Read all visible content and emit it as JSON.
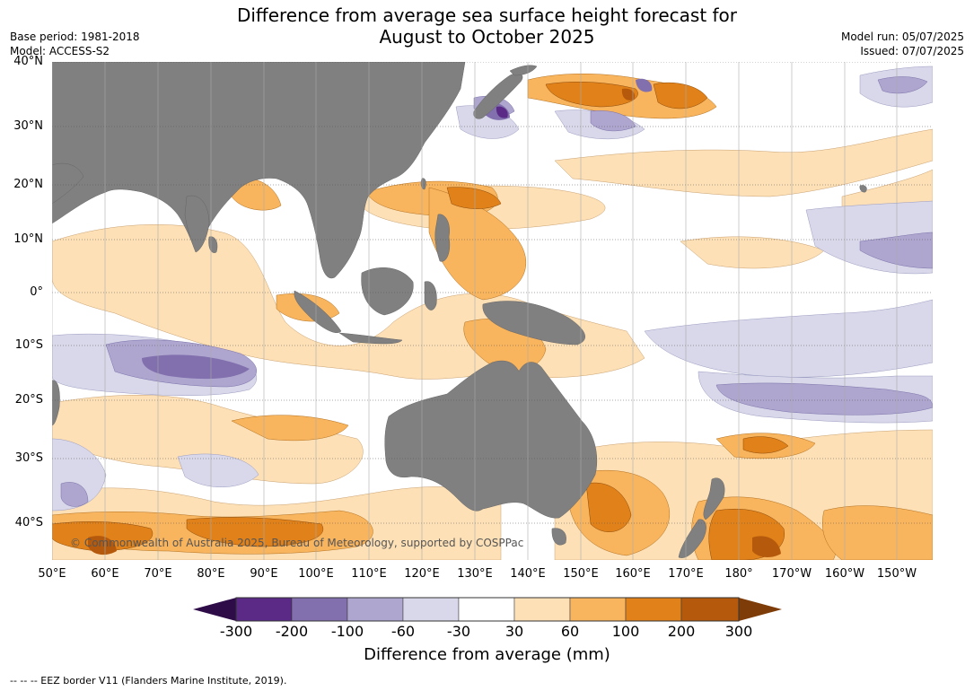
{
  "title_line1": "Difference from average sea surface height forecast for",
  "title_line2": "August to October 2025",
  "meta_left": [
    "Base period: 1981-2018",
    "Model: ACCESS-S2"
  ],
  "meta_right": [
    "Model run: 05/07/2025",
    "Issued: 07/07/2025"
  ],
  "lat_labels": [
    "40°N",
    "30°N",
    "20°N",
    "10°N",
    "0°",
    "10°S",
    "20°S",
    "30°S",
    "40°S"
  ],
  "lon_labels": [
    "50°E",
    "60°E",
    "70°E",
    "80°E",
    "90°E",
    "100°E",
    "110°E",
    "120°E",
    "130°E",
    "140°E",
    "150°E",
    "160°E",
    "170°E",
    "180°",
    "170°W",
    "160°W",
    "150°W"
  ],
  "copyright": "© Commonwealth of Australia 2025, Bureau of Meteorology, supported by COSPPac",
  "colorbar": {
    "label": "Difference from average (mm)",
    "ticks": [
      "-300",
      "-200",
      "-100",
      "-60",
      "-30",
      "30",
      "60",
      "100",
      "200",
      "300"
    ],
    "colors": [
      "#2d0c48",
      "#5a2a86",
      "#8170ad",
      "#aea6cf",
      "#d8d8ea",
      "#ffffff",
      "#fde0b6",
      "#f9b45e",
      "#e0811a",
      "#b55a0c",
      "#7e3c08"
    ]
  },
  "land_color": "#808080",
  "footer": "--  --  -- EEZ border V11 (Flanders Marine Institute, 2019)."
}
